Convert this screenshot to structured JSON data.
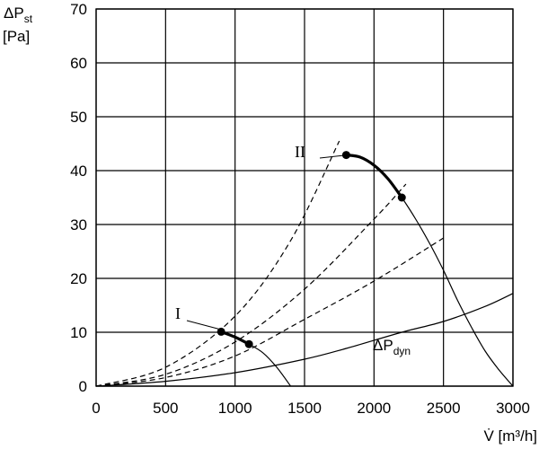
{
  "chart_data": {
    "type": "line",
    "y_axis_title": "ΔP",
    "y_axis_title_sub": "st",
    "y_axis_unit": "[Pa]",
    "x_axis_title": "V̇ [m³/h]",
    "xlim": [
      0,
      3000
    ],
    "ylim": [
      0,
      70
    ],
    "xticks": [
      0,
      500,
      1000,
      1500,
      2000,
      2500,
      3000
    ],
    "yticks": [
      0,
      10,
      20,
      30,
      40,
      50,
      60,
      70
    ],
    "grid": true,
    "system_curves": [
      {
        "style": "dashed",
        "points": [
          [
            0,
            0
          ],
          [
            500,
            3.5
          ],
          [
            1000,
            13
          ],
          [
            1400,
            27
          ],
          [
            1750,
            45.5
          ]
        ]
      },
      {
        "style": "dashed",
        "points": [
          [
            0,
            0
          ],
          [
            500,
            2.2
          ],
          [
            1000,
            8.2
          ],
          [
            1500,
            18
          ],
          [
            2000,
            31
          ],
          [
            2230,
            37.5
          ]
        ]
      },
      {
        "style": "dashed",
        "points": [
          [
            0,
            0
          ],
          [
            500,
            1.6
          ],
          [
            1000,
            5.6
          ],
          [
            1500,
            12.4
          ],
          [
            2000,
            19.5
          ],
          [
            2500,
            27.5
          ]
        ]
      }
    ],
    "dynamic_pressure_curve": {
      "label": "ΔP",
      "label_sub": "dyn",
      "points": [
        [
          0,
          0
        ],
        [
          500,
          0.9
        ],
        [
          1000,
          2.5
        ],
        [
          1500,
          5
        ],
        [
          1800,
          7
        ],
        [
          2200,
          10
        ],
        [
          2500,
          12
        ],
        [
          2800,
          14.8
        ],
        [
          3000,
          17.2
        ]
      ]
    },
    "fan_curves": [
      {
        "name": "I",
        "points": [
          [
            900,
            10.1
          ],
          [
            1000,
            9.1
          ],
          [
            1100,
            7.8
          ],
          [
            1200,
            6.2
          ],
          [
            1300,
            3.5
          ],
          [
            1400,
            0
          ]
        ],
        "operating_range": [
          [
            900,
            10.1
          ],
          [
            1000,
            9.1
          ],
          [
            1100,
            7.8
          ]
        ]
      },
      {
        "name": "II",
        "points": [
          [
            1800,
            42.9
          ],
          [
            1900,
            42.5
          ],
          [
            2000,
            41
          ],
          [
            2100,
            38.5
          ],
          [
            2200,
            35
          ],
          [
            2300,
            31
          ],
          [
            2400,
            26.5
          ],
          [
            2500,
            21.5
          ],
          [
            2600,
            16
          ],
          [
            2700,
            11
          ],
          [
            2800,
            6.5
          ],
          [
            2900,
            3
          ],
          [
            3000,
            0
          ]
        ],
        "operating_range": [
          [
            1800,
            42.9
          ],
          [
            1900,
            42.5
          ],
          [
            2000,
            41
          ],
          [
            2100,
            38.5
          ],
          [
            2200,
            35
          ]
        ]
      }
    ]
  }
}
